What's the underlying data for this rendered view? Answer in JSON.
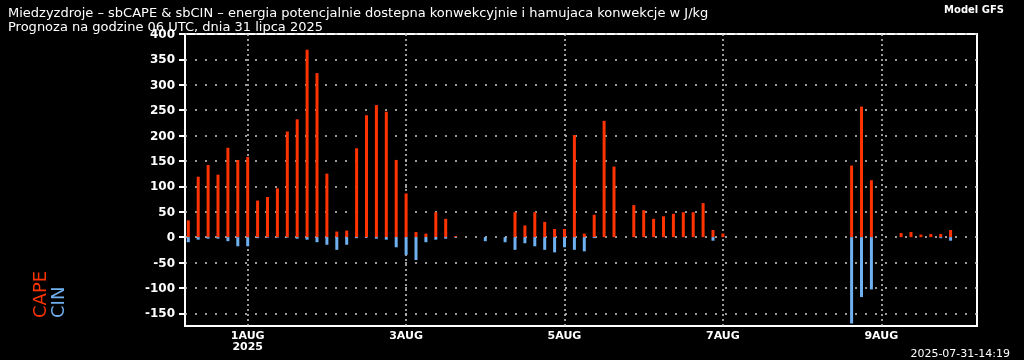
{
  "chart_data": {
    "type": "bar",
    "title": "Miedzyzdroje – sbCAPE & sbCIN – energia potencjalnie dostepna konwekcyjnie i hamujaca konwekcje w J/kg",
    "subtitle": "Prognoza na godzine 06 UTC, dnia 31 lipca 2025",
    "annotations": [
      "Model GFS",
      "2025-07-31-14:19"
    ],
    "x": [
      "2025-07-31T06:00",
      "2025-07-31T09:00",
      "2025-07-31T12:00",
      "2025-07-31T15:00",
      "2025-07-31T18:00",
      "2025-07-31T21:00",
      "2025-08-01T00:00",
      "2025-08-01T03:00",
      "2025-08-01T06:00",
      "2025-08-01T09:00",
      "2025-08-01T12:00",
      "2025-08-01T15:00",
      "2025-08-01T18:00",
      "2025-08-01T21:00",
      "2025-08-02T00:00",
      "2025-08-02T03:00",
      "2025-08-02T06:00",
      "2025-08-02T09:00",
      "2025-08-02T12:00",
      "2025-08-02T15:00",
      "2025-08-02T18:00",
      "2025-08-02T21:00",
      "2025-08-03T00:00",
      "2025-08-03T03:00",
      "2025-08-03T06:00",
      "2025-08-03T09:00",
      "2025-08-03T12:00",
      "2025-08-03T15:00",
      "2025-08-03T18:00",
      "2025-08-03T21:00",
      "2025-08-04T00:00",
      "2025-08-04T03:00",
      "2025-08-04T06:00",
      "2025-08-04T09:00",
      "2025-08-04T12:00",
      "2025-08-04T15:00",
      "2025-08-04T18:00",
      "2025-08-04T21:00",
      "2025-08-05T00:00",
      "2025-08-05T03:00",
      "2025-08-05T06:00",
      "2025-08-05T09:00",
      "2025-08-05T12:00",
      "2025-08-05T15:00",
      "2025-08-05T18:00",
      "2025-08-05T21:00",
      "2025-08-06T00:00",
      "2025-08-06T03:00",
      "2025-08-06T06:00",
      "2025-08-06T09:00",
      "2025-08-06T12:00",
      "2025-08-06T15:00",
      "2025-08-06T18:00",
      "2025-08-06T21:00",
      "2025-08-07T00:00",
      "2025-08-07T03:00",
      "2025-08-07T06:00",
      "2025-08-07T09:00",
      "2025-08-07T12:00",
      "2025-08-07T15:00",
      "2025-08-07T18:00",
      "2025-08-07T21:00",
      "2025-08-08T00:00",
      "2025-08-08T03:00",
      "2025-08-08T06:00",
      "2025-08-08T09:00",
      "2025-08-08T12:00",
      "2025-08-08T15:00",
      "2025-08-08T18:00",
      "2025-08-08T21:00",
      "2025-08-09T00:00",
      "2025-08-09T03:00",
      "2025-08-09T06:00",
      "2025-08-09T09:00",
      "2025-08-09T12:00",
      "2025-08-09T15:00",
      "2025-08-09T18:00",
      "2025-08-09T21:00",
      "2025-08-10T00:00",
      "2025-08-10T03:00"
    ],
    "series": [
      {
        "name": "CAPE",
        "color": "#ff3300",
        "values": [
          33,
          119,
          142,
          123,
          176,
          152,
          158,
          72,
          79,
          96,
          208,
          232,
          369,
          323,
          125,
          11,
          13,
          175,
          240,
          260,
          247,
          152,
          86,
          10,
          7,
          49,
          36,
          2,
          0,
          0,
          0,
          0,
          0,
          49,
          23,
          49,
          30,
          16,
          16,
          201,
          7,
          44,
          229,
          139,
          null,
          63,
          53,
          36,
          41,
          46,
          49,
          49,
          67,
          14,
          7,
          0,
          0,
          0,
          0,
          0,
          0,
          0,
          0,
          0,
          0,
          0,
          0,
          141,
          257,
          112,
          0,
          0,
          8,
          10,
          5,
          6,
          6,
          14,
          0,
          0
        ]
      },
      {
        "name": "CIN",
        "color": "#6fb0f0",
        "values": [
          -10,
          -5,
          -3,
          -3,
          -8,
          -18,
          -18,
          -2,
          -1,
          -1,
          -1,
          -3,
          -5,
          -10,
          -15,
          -25,
          -15,
          -2,
          -1,
          -3,
          -5,
          -20,
          -35,
          -45,
          -10,
          -5,
          -3,
          -1,
          0,
          0,
          -8,
          0,
          -10,
          -25,
          -12,
          -18,
          -25,
          -30,
          -20,
          -25,
          -28,
          -2,
          0,
          0,
          null,
          0,
          0,
          0,
          0,
          0,
          0,
          0,
          0,
          -7,
          0,
          0,
          0,
          0,
          0,
          0,
          0,
          0,
          0,
          0,
          0,
          0,
          0,
          -170,
          -118,
          -103,
          0,
          0,
          0,
          0,
          0,
          0,
          -2,
          -7,
          0,
          0
        ]
      }
    ],
    "xlim": [
      "2025-07-31T05:00",
      "2025-08-10T05:00"
    ],
    "xticks": [
      {
        "value": "2025-08-01",
        "label": "1AUG\n2025"
      },
      {
        "value": "2025-08-03",
        "label": "3AUG"
      },
      {
        "value": "2025-08-05",
        "label": "5AUG"
      },
      {
        "value": "2025-08-07",
        "label": "7AUG"
      },
      {
        "value": "2025-08-09",
        "label": "9AUG"
      }
    ],
    "ylim": [
      -175,
      400
    ],
    "yticks": [
      -150,
      -100,
      -50,
      0,
      50,
      100,
      150,
      200,
      250,
      300,
      350,
      400
    ],
    "grid": true,
    "legend": "left"
  }
}
